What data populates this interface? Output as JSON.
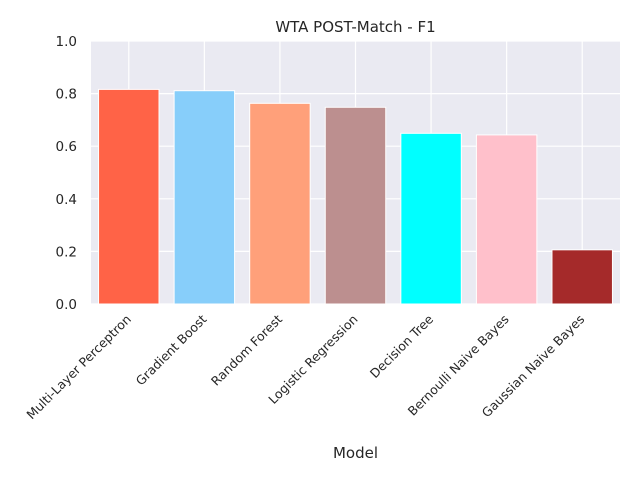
{
  "chart_data": {
    "type": "bar",
    "title": "WTA POST-Match - F1",
    "xlabel": "Model",
    "ylabel": "",
    "ylim": [
      0,
      1.0
    ],
    "yticks": [
      "0.0",
      "0.2",
      "0.4",
      "0.6",
      "0.8",
      "1.0"
    ],
    "grid": true,
    "categories": [
      "Multi-Layer Perceptron",
      "Gradient Boost",
      "Random Forest",
      "Logistic Regression",
      "Decision Tree",
      "Bernoulli Naive Bayes",
      "Gaussian Naive Bayes"
    ],
    "values": [
      0.816,
      0.811,
      0.763,
      0.748,
      0.649,
      0.643,
      0.206
    ],
    "colors": [
      "#ff6347",
      "#87cefa",
      "#ffa07a",
      "#bc8f8f",
      "#00ffff",
      "#ffc0cb",
      "#a52a2a"
    ]
  },
  "theme": {
    "plot_background": "#eaeaf2",
    "grid_color": "#ffffff",
    "text_color": "#262626"
  }
}
